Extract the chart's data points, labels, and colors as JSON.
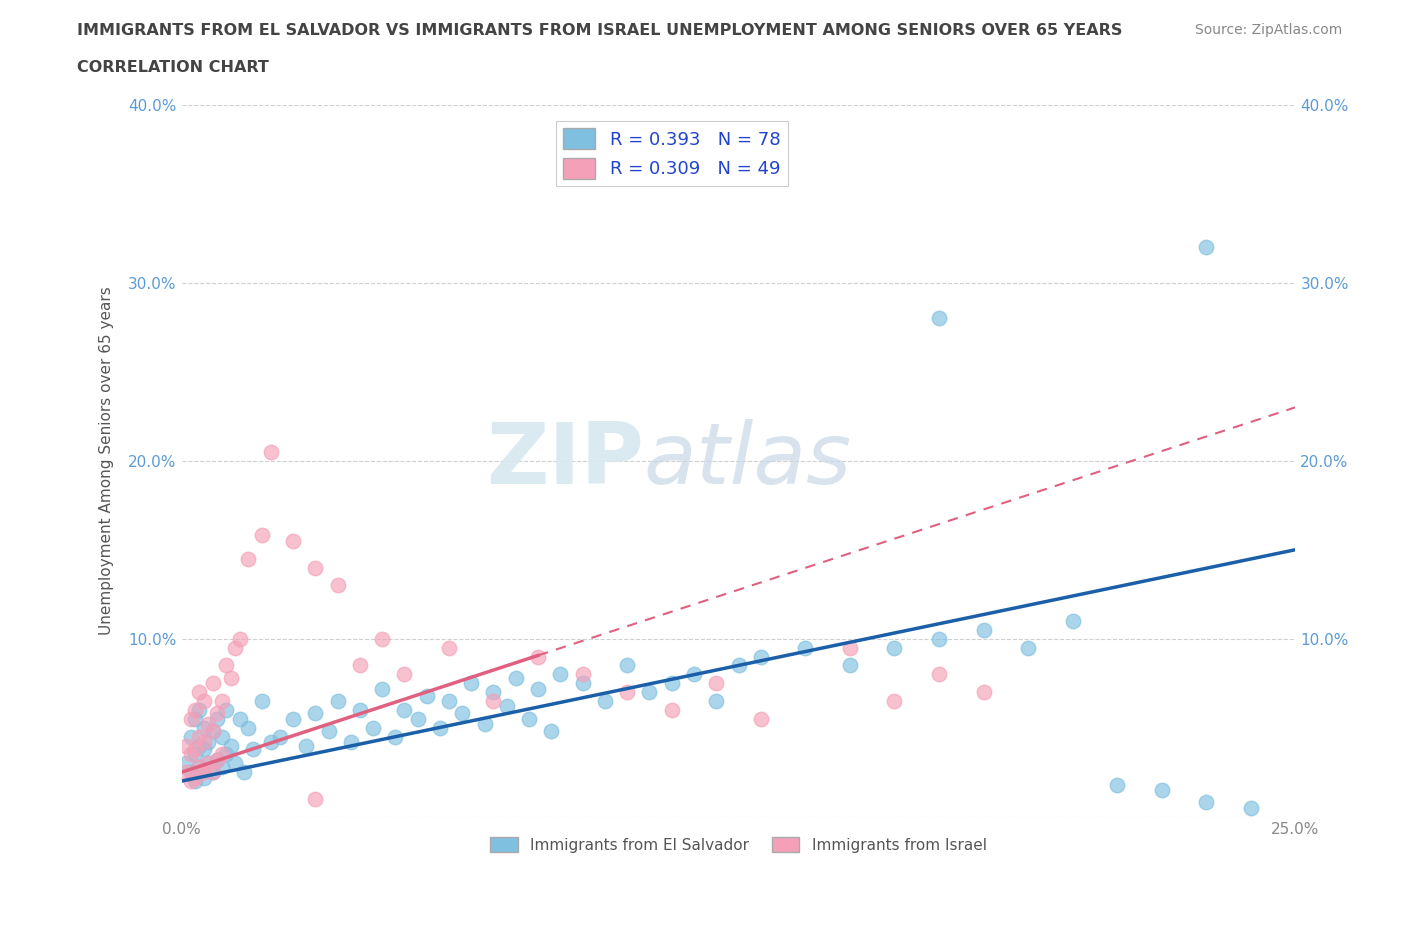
{
  "title_line1": "IMMIGRANTS FROM EL SALVADOR VS IMMIGRANTS FROM ISRAEL UNEMPLOYMENT AMONG SENIORS OVER 65 YEARS",
  "title_line2": "CORRELATION CHART",
  "source_text": "Source: ZipAtlas.com",
  "ylabel": "Unemployment Among Seniors over 65 years",
  "x_min": 0.0,
  "x_max": 0.25,
  "y_min": 0.0,
  "y_max": 0.4,
  "legend_entry1": "R = 0.393   N = 78",
  "legend_entry2": "R = 0.309   N = 49",
  "color_salvador": "#7fbfdf",
  "color_israel": "#f4a0b8",
  "color_salvador_line": "#1a5fa8",
  "color_israel_line": "#e06080",
  "R_salvador": 0.393,
  "R_israel": 0.309,
  "watermark_zip": "ZIP",
  "watermark_atlas": "atlas",
  "grid_color": "#d0d0d0",
  "bg_color": "#ffffff",
  "el_salvador_x": [
    0.001,
    0.002,
    0.002,
    0.003,
    0.003,
    0.003,
    0.004,
    0.004,
    0.004,
    0.005,
    0.005,
    0.005,
    0.006,
    0.006,
    0.007,
    0.007,
    0.008,
    0.008,
    0.009,
    0.009,
    0.01,
    0.01,
    0.011,
    0.012,
    0.013,
    0.014,
    0.015,
    0.016,
    0.018,
    0.02,
    0.022,
    0.025,
    0.028,
    0.03,
    0.033,
    0.035,
    0.038,
    0.04,
    0.043,
    0.045,
    0.048,
    0.05,
    0.053,
    0.055,
    0.058,
    0.06,
    0.063,
    0.065,
    0.068,
    0.07,
    0.073,
    0.075,
    0.078,
    0.08,
    0.083,
    0.085,
    0.09,
    0.095,
    0.1,
    0.105,
    0.11,
    0.115,
    0.12,
    0.125,
    0.13,
    0.14,
    0.15,
    0.16,
    0.17,
    0.18,
    0.19,
    0.2,
    0.21,
    0.22,
    0.23,
    0.17,
    0.23,
    0.24
  ],
  "el_salvador_y": [
    0.03,
    0.025,
    0.045,
    0.02,
    0.035,
    0.055,
    0.028,
    0.04,
    0.06,
    0.022,
    0.038,
    0.05,
    0.03,
    0.042,
    0.025,
    0.048,
    0.032,
    0.055,
    0.028,
    0.045,
    0.035,
    0.06,
    0.04,
    0.03,
    0.055,
    0.025,
    0.05,
    0.038,
    0.065,
    0.042,
    0.045,
    0.055,
    0.04,
    0.058,
    0.048,
    0.065,
    0.042,
    0.06,
    0.05,
    0.072,
    0.045,
    0.06,
    0.055,
    0.068,
    0.05,
    0.065,
    0.058,
    0.075,
    0.052,
    0.07,
    0.062,
    0.078,
    0.055,
    0.072,
    0.048,
    0.08,
    0.075,
    0.065,
    0.085,
    0.07,
    0.075,
    0.08,
    0.065,
    0.085,
    0.09,
    0.095,
    0.085,
    0.095,
    0.1,
    0.105,
    0.095,
    0.11,
    0.018,
    0.015,
    0.008,
    0.28,
    0.32,
    0.005
  ],
  "israel_x": [
    0.001,
    0.001,
    0.002,
    0.002,
    0.002,
    0.003,
    0.003,
    0.003,
    0.004,
    0.004,
    0.004,
    0.005,
    0.005,
    0.005,
    0.006,
    0.006,
    0.007,
    0.007,
    0.007,
    0.008,
    0.008,
    0.009,
    0.009,
    0.01,
    0.011,
    0.012,
    0.013,
    0.015,
    0.018,
    0.02,
    0.025,
    0.03,
    0.035,
    0.04,
    0.045,
    0.05,
    0.06,
    0.07,
    0.08,
    0.09,
    0.1,
    0.11,
    0.12,
    0.13,
    0.15,
    0.16,
    0.17,
    0.18,
    0.03
  ],
  "israel_y": [
    0.025,
    0.04,
    0.02,
    0.035,
    0.055,
    0.022,
    0.038,
    0.06,
    0.028,
    0.045,
    0.07,
    0.025,
    0.042,
    0.065,
    0.03,
    0.052,
    0.025,
    0.048,
    0.075,
    0.032,
    0.058,
    0.035,
    0.065,
    0.085,
    0.078,
    0.095,
    0.1,
    0.145,
    0.158,
    0.205,
    0.155,
    0.14,
    0.13,
    0.085,
    0.1,
    0.08,
    0.095,
    0.065,
    0.09,
    0.08,
    0.07,
    0.06,
    0.075,
    0.055,
    0.095,
    0.065,
    0.08,
    0.07,
    0.01
  ],
  "trendline_sal_x0": 0.0,
  "trendline_sal_y0": 0.02,
  "trendline_sal_x1": 0.25,
  "trendline_sal_y1": 0.15,
  "trendline_isr_x0": 0.0,
  "trendline_isr_y0": 0.025,
  "trendline_isr_x1": 0.25,
  "trendline_isr_y1": 0.23
}
